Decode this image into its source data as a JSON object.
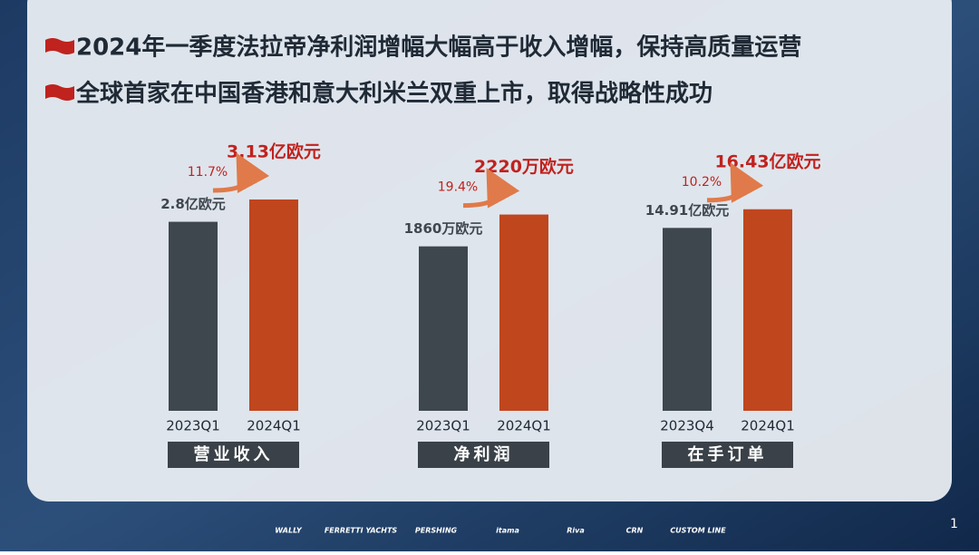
{
  "bullets": [
    "2024年一季度法拉帝净利润增幅大幅高于收入增幅，保持高质量运营",
    "全球首家在中国香港和意大利米兰双重上市，取得战略性成功"
  ],
  "chart_data": [
    {
      "type": "bar",
      "title": "营业收入",
      "categories": [
        "2023Q1",
        "2024Q1"
      ],
      "values": [
        2.8,
        3.13
      ],
      "value_labels": [
        "2.8亿欧元",
        "3.13亿欧元"
      ],
      "annotation": "11.7%",
      "colors": [
        "#3f474e",
        "#c0461e"
      ],
      "ylim": [
        0,
        4.07
      ]
    },
    {
      "type": "bar",
      "title": "净利润",
      "categories": [
        "2023Q1",
        "2024Q1"
      ],
      "values": [
        1860,
        2220
      ],
      "value_labels": [
        "1860万欧元",
        "2220万欧元"
      ],
      "annotation": "19.4%",
      "colors": [
        "#3f474e",
        "#c0461e"
      ],
      "ylim": [
        0,
        3108
      ]
    },
    {
      "type": "bar",
      "title": "在手订单",
      "categories": [
        "2023Q4",
        "2024Q1"
      ],
      "values": [
        14.91,
        16.43
      ],
      "value_labels": [
        "14.91亿欧元",
        "16.43亿欧元"
      ],
      "annotation": "10.2%",
      "colors": [
        "#3f474e",
        "#c0461e"
      ],
      "ylim": [
        0,
        22.4
      ]
    }
  ],
  "brands": [
    "WALLY",
    "FERRETTI YACHTS",
    "PERSHING",
    "itama",
    "Riva",
    "CRN",
    "CUSTOM LINE"
  ],
  "page_number": "1"
}
